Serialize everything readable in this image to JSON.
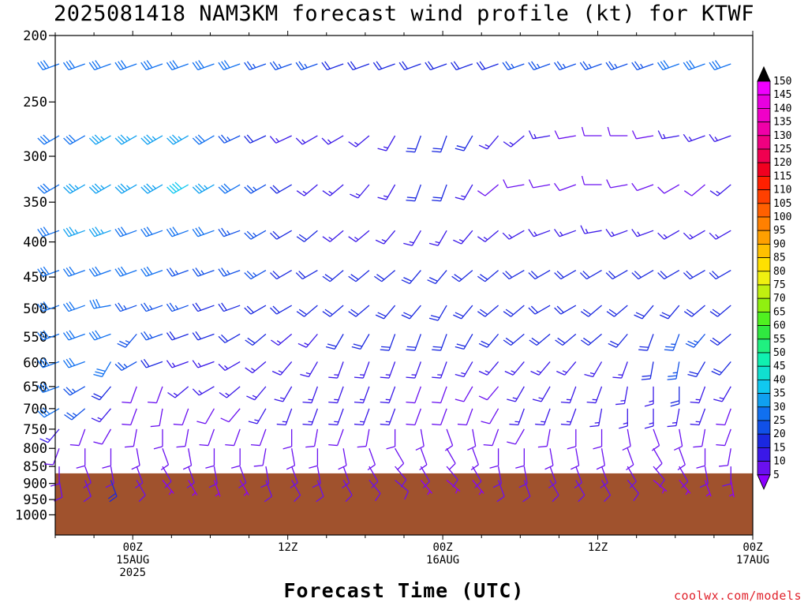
{
  "title": "2025081418 NAM3KM forecast wind profile (kt) for KTWF",
  "credit": "coolwx.com/models",
  "chart_data": {
    "type": "wind-barb-profile",
    "title": "2025081418 NAM3KM forecast wind profile (kt) for KTWF",
    "xlabel": "Forecast Time (UTC)",
    "ylabel": "",
    "y_log_pressure": true,
    "ylim": [
      1070,
      200
    ],
    "ylabels": [
      "200",
      "250",
      "300",
      "350",
      "400",
      "450",
      "500",
      "550",
      "600",
      "650",
      "700",
      "750",
      "800",
      "850",
      "900",
      "950",
      "1000"
    ],
    "x_range_hours": [
      -6,
      48
    ],
    "xticks": [
      {
        "hour": 0,
        "lines": [
          "00Z",
          "15AUG",
          "2025"
        ]
      },
      {
        "hour": 12,
        "lines": [
          "12Z"
        ]
      },
      {
        "hour": 24,
        "lines": [
          "00Z",
          "16AUG"
        ]
      },
      {
        "hour": 36,
        "lines": [
          "12Z"
        ]
      },
      {
        "hour": 48,
        "lines": [
          "00Z",
          "17AUG"
        ]
      }
    ],
    "ground_level_hpa": 870,
    "ground_color": "#a0522d",
    "colorbar": {
      "levels": [
        5,
        10,
        15,
        20,
        25,
        30,
        35,
        40,
        45,
        50,
        55,
        60,
        65,
        70,
        75,
        80,
        85,
        90,
        95,
        100,
        105,
        110,
        115,
        120,
        125,
        130,
        135,
        140,
        145,
        150
      ],
      "colors": [
        "#8b00ff",
        "#6a10f0",
        "#3a18e8",
        "#1a28e0",
        "#1050e8",
        "#1070f0",
        "#10a0f0",
        "#10c8f0",
        "#10e0d0",
        "#10f0b0",
        "#20f080",
        "#30e840",
        "#50f020",
        "#90f010",
        "#c0f010",
        "#f0f010",
        "#ffe000",
        "#ffc000",
        "#ffa000",
        "#ff8000",
        "#ff6000",
        "#ff4000",
        "#ff2000",
        "#f00020",
        "#f00050",
        "#f00080",
        "#f000a8",
        "#f000c8",
        "#e800e0",
        "#f000ff"
      ],
      "labels": [
        "5",
        "10",
        "15",
        "20",
        "25",
        "30",
        "35",
        "40",
        "45",
        "50",
        "55",
        "60",
        "65",
        "70",
        "75",
        "80",
        "85",
        "90",
        "95",
        "100",
        "105",
        "110",
        "115",
        "120",
        "125",
        "130",
        "135",
        "140",
        "145",
        "150"
      ]
    },
    "levels_hpa": [
      220,
      280,
      330,
      385,
      440,
      495,
      545,
      598,
      650,
      700,
      750,
      800,
      850,
      890
    ],
    "time_start_hour": -6,
    "time_step_hours": 2,
    "wind_dir_deg": [
      [
        250,
        250,
        250,
        250,
        250,
        250,
        250,
        250,
        250,
        250,
        250,
        250,
        250,
        250,
        250,
        250,
        250,
        250,
        250,
        250,
        250,
        250,
        250,
        250,
        250,
        250,
        250,
        250
      ],
      [
        240,
        240,
        240,
        240,
        240,
        240,
        240,
        245,
        245,
        245,
        240,
        240,
        230,
        210,
        200,
        200,
        210,
        220,
        230,
        260,
        260,
        270,
        270,
        260,
        260,
        250,
        250,
        240
      ],
      [
        240,
        240,
        240,
        240,
        240,
        240,
        240,
        240,
        240,
        240,
        230,
        230,
        220,
        210,
        200,
        200,
        210,
        230,
        260,
        260,
        250,
        270,
        260,
        250,
        240,
        230,
        230,
        230
      ],
      [
        250,
        250,
        250,
        250,
        250,
        250,
        250,
        250,
        240,
        240,
        230,
        230,
        230,
        220,
        210,
        210,
        220,
        230,
        240,
        250,
        250,
        260,
        250,
        250,
        240,
        240,
        240,
        240
      ],
      [
        250,
        250,
        250,
        250,
        250,
        250,
        250,
        250,
        240,
        240,
        240,
        230,
        230,
        230,
        220,
        220,
        230,
        230,
        240,
        240,
        240,
        240,
        240,
        240,
        240,
        240,
        240,
        230
      ],
      [
        250,
        250,
        260,
        250,
        250,
        250,
        250,
        250,
        240,
        240,
        230,
        230,
        230,
        220,
        220,
        210,
        220,
        230,
        230,
        240,
        240,
        230,
        230,
        220,
        220,
        230,
        230,
        230
      ],
      [
        250,
        250,
        250,
        220,
        250,
        250,
        250,
        240,
        230,
        230,
        220,
        210,
        210,
        200,
        200,
        200,
        210,
        220,
        230,
        230,
        230,
        230,
        220,
        200,
        200,
        220,
        230,
        230
      ],
      [
        250,
        250,
        210,
        240,
        250,
        250,
        250,
        240,
        230,
        220,
        210,
        200,
        200,
        200,
        200,
        200,
        210,
        220,
        220,
        220,
        220,
        210,
        200,
        190,
        190,
        210,
        220,
        220
      ],
      [
        250,
        240,
        220,
        200,
        200,
        230,
        240,
        230,
        220,
        210,
        200,
        200,
        200,
        200,
        200,
        200,
        210,
        220,
        210,
        210,
        200,
        200,
        190,
        180,
        180,
        200,
        210,
        210
      ],
      [
        240,
        230,
        220,
        200,
        190,
        200,
        210,
        220,
        210,
        200,
        200,
        200,
        200,
        200,
        200,
        200,
        200,
        210,
        200,
        200,
        200,
        190,
        180,
        180,
        190,
        200,
        200,
        200
      ],
      [
        220,
        200,
        210,
        190,
        180,
        190,
        200,
        200,
        200,
        180,
        190,
        200,
        190,
        180,
        170,
        160,
        170,
        200,
        210,
        190,
        180,
        180,
        170,
        160,
        170,
        190,
        200,
        210
      ],
      [
        200,
        180,
        180,
        170,
        160,
        170,
        180,
        180,
        190,
        170,
        180,
        170,
        160,
        150,
        160,
        150,
        160,
        180,
        180,
        170,
        170,
        170,
        160,
        150,
        160,
        180,
        190,
        200
      ],
      [
        180,
        160,
        170,
        160,
        150,
        160,
        170,
        160,
        170,
        160,
        170,
        160,
        150,
        140,
        150,
        140,
        150,
        170,
        170,
        160,
        160,
        160,
        150,
        140,
        150,
        170,
        180,
        190
      ],
      [
        170,
        160,
        160,
        150,
        140,
        150,
        160,
        150,
        160,
        150,
        160,
        150,
        140,
        130,
        140,
        130,
        140,
        160,
        160,
        150,
        150,
        150,
        140,
        130,
        140,
        160,
        170,
        180
      ]
    ],
    "wind_speed_kt": [
      [
        30,
        30,
        30,
        30,
        30,
        30,
        30,
        30,
        25,
        25,
        25,
        20,
        20,
        20,
        20,
        20,
        20,
        20,
        25,
        25,
        25,
        25,
        25,
        25,
        30,
        30,
        30,
        30
      ],
      [
        30,
        30,
        35,
        35,
        35,
        35,
        30,
        25,
        20,
        15,
        15,
        15,
        15,
        15,
        20,
        20,
        20,
        15,
        15,
        15,
        10,
        10,
        10,
        10,
        15,
        15,
        15,
        15
      ],
      [
        30,
        35,
        35,
        35,
        35,
        40,
        35,
        30,
        25,
        20,
        15,
        15,
        15,
        15,
        20,
        20,
        15,
        10,
        10,
        10,
        10,
        10,
        10,
        10,
        10,
        10,
        15,
        15
      ],
      [
        30,
        35,
        35,
        30,
        30,
        30,
        30,
        25,
        25,
        20,
        20,
        15,
        15,
        15,
        15,
        15,
        15,
        15,
        15,
        15,
        15,
        15,
        15,
        15,
        15,
        15,
        15,
        15
      ],
      [
        30,
        30,
        30,
        30,
        30,
        25,
        25,
        25,
        25,
        20,
        20,
        20,
        20,
        20,
        20,
        20,
        20,
        20,
        20,
        20,
        20,
        20,
        20,
        20,
        20,
        20,
        20,
        20
      ],
      [
        30,
        30,
        30,
        25,
        25,
        25,
        20,
        20,
        20,
        20,
        20,
        20,
        20,
        20,
        20,
        20,
        20,
        20,
        20,
        20,
        20,
        20,
        20,
        20,
        20,
        20,
        20,
        20
      ],
      [
        30,
        30,
        30,
        25,
        25,
        20,
        20,
        20,
        20,
        15,
        15,
        20,
        20,
        20,
        20,
        20,
        20,
        20,
        20,
        20,
        20,
        20,
        20,
        20,
        25,
        25,
        20,
        20
      ],
      [
        30,
        30,
        30,
        25,
        20,
        15,
        15,
        15,
        15,
        15,
        15,
        15,
        15,
        15,
        15,
        15,
        15,
        15,
        15,
        15,
        15,
        15,
        15,
        20,
        25,
        20,
        20,
        20
      ],
      [
        30,
        25,
        20,
        10,
        10,
        15,
        15,
        15,
        15,
        15,
        15,
        15,
        15,
        15,
        10,
        10,
        10,
        10,
        15,
        15,
        15,
        15,
        15,
        15,
        20,
        15,
        15,
        15
      ],
      [
        30,
        25,
        15,
        10,
        10,
        10,
        10,
        10,
        15,
        15,
        15,
        15,
        15,
        15,
        10,
        10,
        10,
        10,
        15,
        15,
        15,
        15,
        15,
        15,
        15,
        15,
        10,
        10
      ],
      [
        15,
        10,
        10,
        10,
        10,
        10,
        10,
        10,
        10,
        10,
        10,
        10,
        10,
        10,
        10,
        10,
        10,
        10,
        10,
        10,
        10,
        10,
        10,
        10,
        10,
        10,
        10,
        10
      ],
      [
        10,
        10,
        10,
        10,
        10,
        10,
        10,
        10,
        10,
        10,
        10,
        10,
        10,
        10,
        10,
        10,
        10,
        10,
        10,
        10,
        10,
        10,
        10,
        10,
        10,
        10,
        10,
        10
      ],
      [
        10,
        10,
        10,
        10,
        10,
        10,
        10,
        10,
        10,
        10,
        10,
        10,
        10,
        10,
        10,
        10,
        10,
        10,
        10,
        10,
        10,
        10,
        10,
        10,
        10,
        10,
        10,
        10
      ],
      [
        10,
        10,
        20,
        10,
        5,
        5,
        5,
        5,
        10,
        10,
        10,
        10,
        10,
        10,
        5,
        5,
        5,
        10,
        10,
        10,
        10,
        10,
        10,
        5,
        5,
        5,
        5,
        5
      ]
    ]
  }
}
